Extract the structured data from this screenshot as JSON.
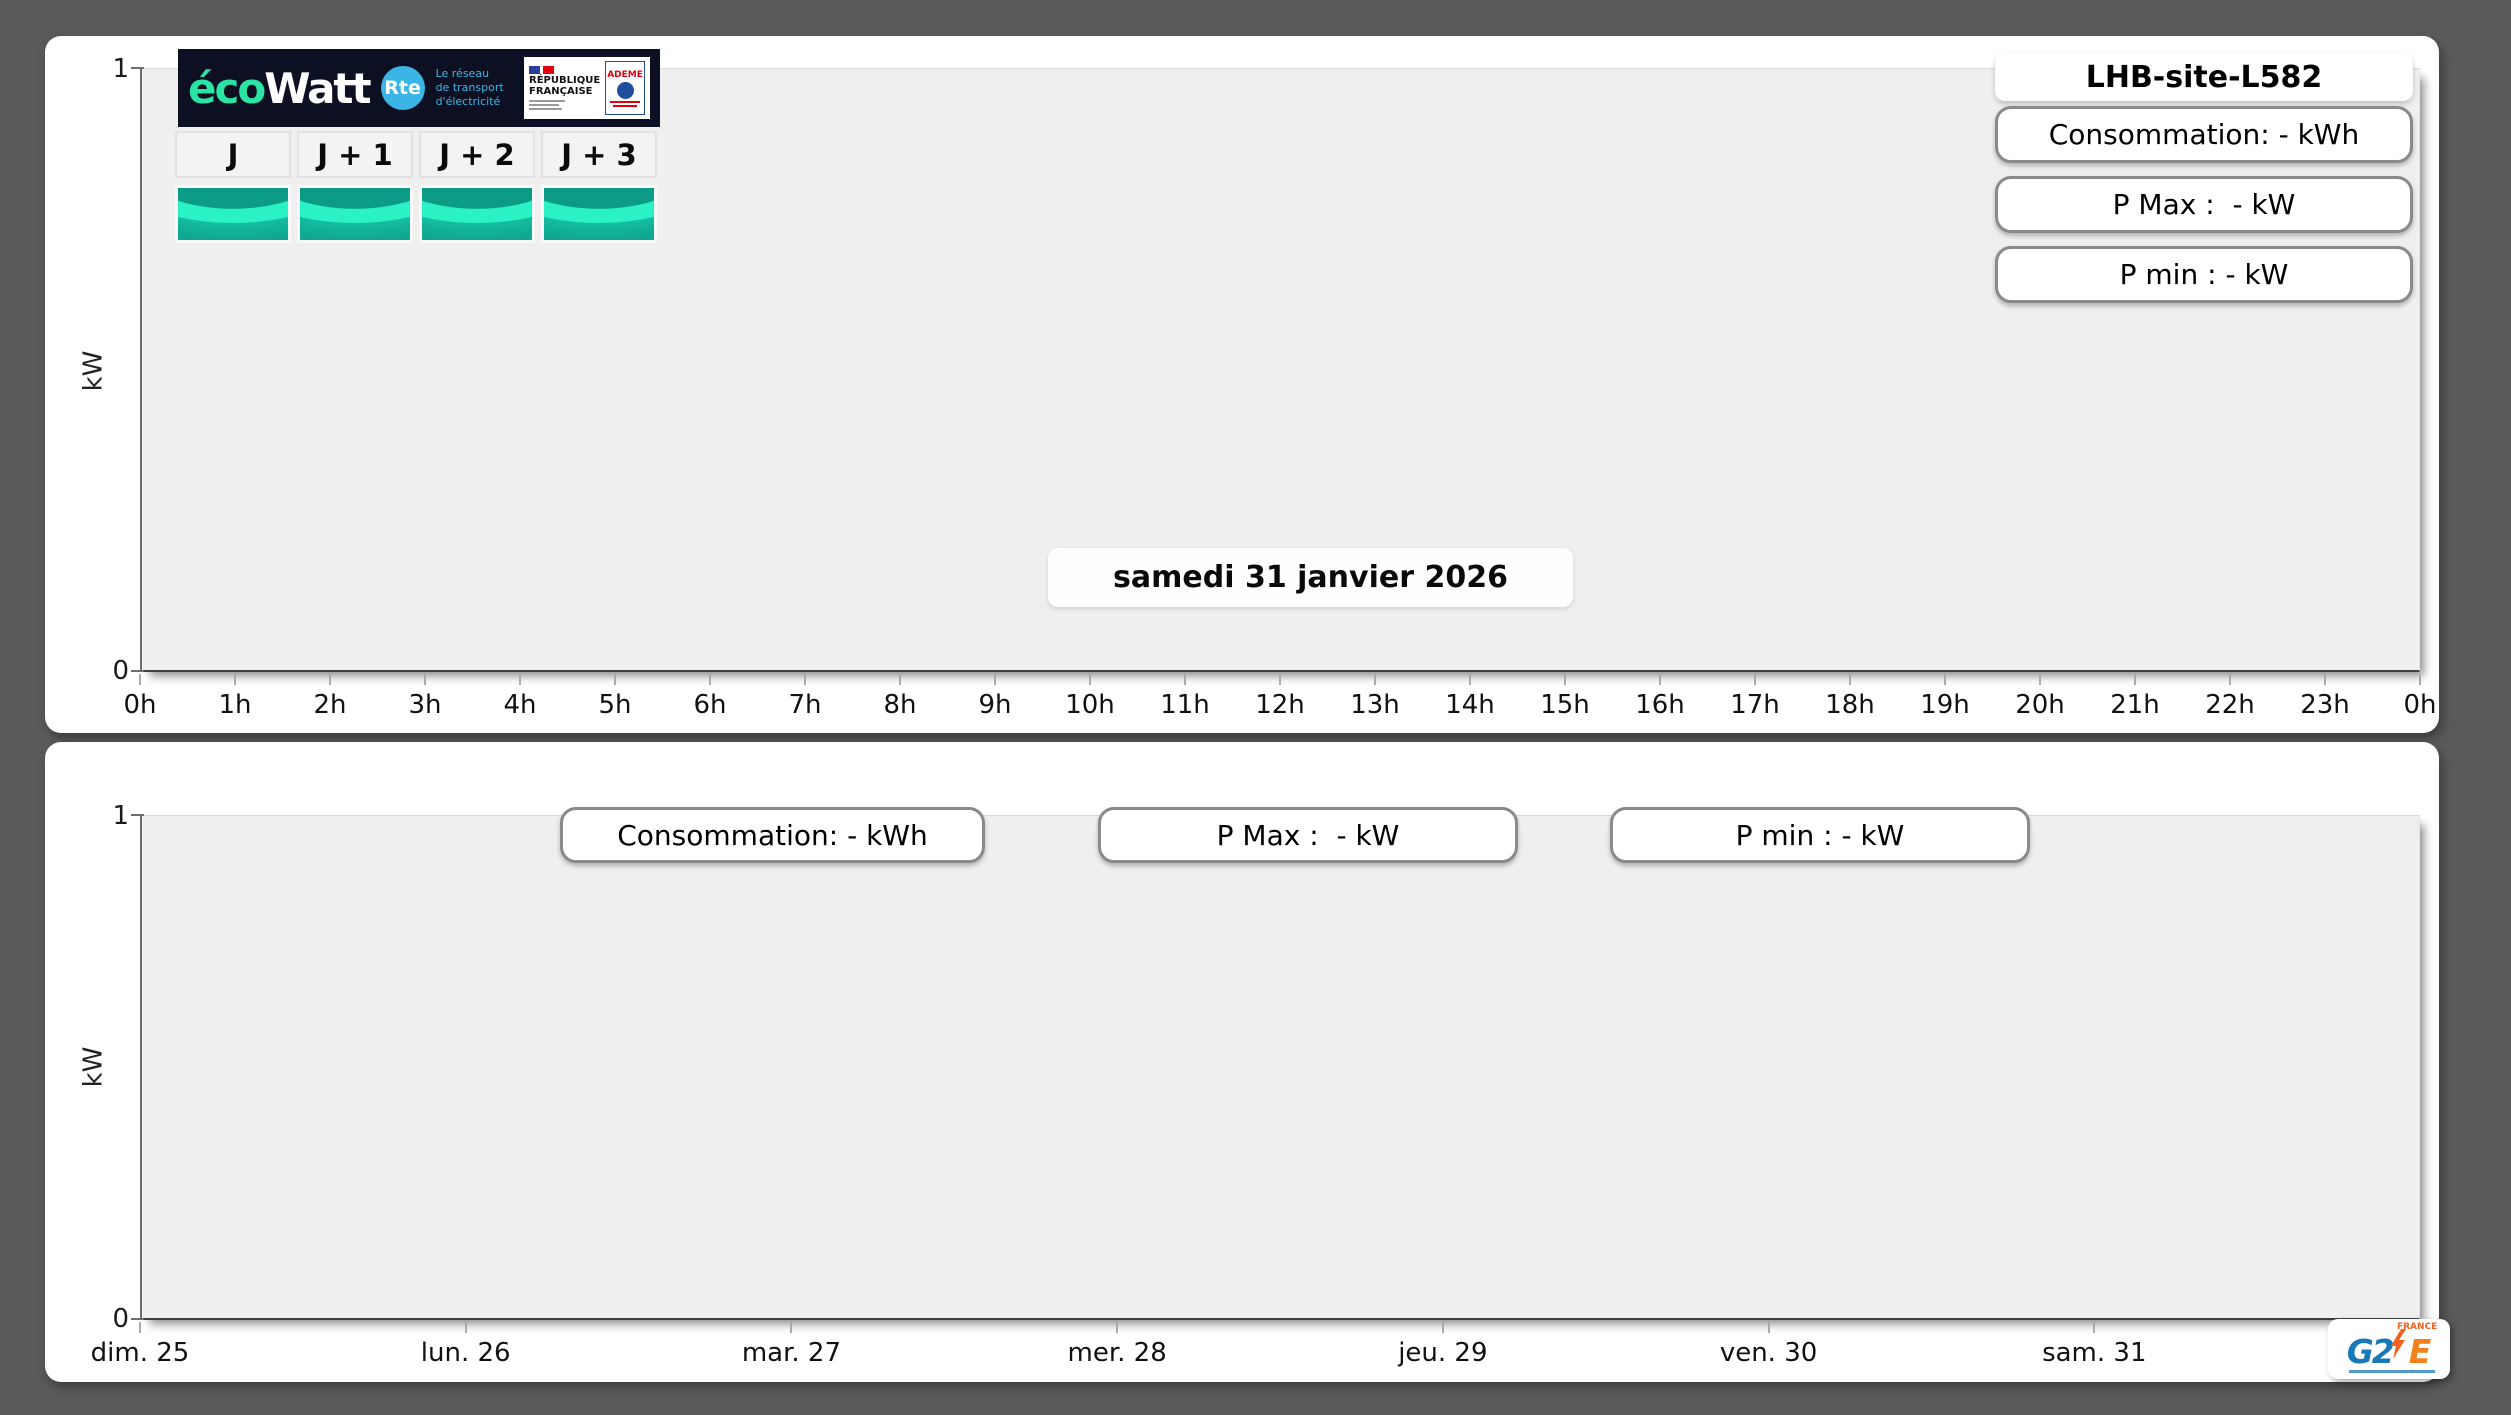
{
  "window": {
    "background": "#5a5a5a"
  },
  "top_panel": {
    "ecowatt_logo": {
      "eco": "éco",
      "watt": "Watt",
      "rte_badge": "Rte",
      "rte_lines": [
        "Le réseau",
        "de transport",
        "d'électricité"
      ],
      "republique_lines": [
        "RÉPUBLIQUE",
        "FRANÇAISE"
      ],
      "ademe_label": "ADEME"
    },
    "day_tabs": [
      {
        "label": "J"
      },
      {
        "label": "J + 1"
      },
      {
        "label": "J + 2"
      },
      {
        "label": "J + 3"
      }
    ],
    "site_title": "LHB-site-L582",
    "stat_boxes": [
      {
        "label": "Consommation: - kWh"
      },
      {
        "label": "P Max :  - kW"
      },
      {
        "label": "P min : - kW"
      }
    ],
    "date_overlay": "samedi 31 janvier 2026",
    "y_axis": {
      "max_label": "1",
      "min_label": "0",
      "unit_label": "kW"
    },
    "x_tick_labels": [
      "0h",
      "1h",
      "2h",
      "3h",
      "4h",
      "5h",
      "6h",
      "7h",
      "8h",
      "9h",
      "10h",
      "11h",
      "12h",
      "13h",
      "14h",
      "15h",
      "16h",
      "17h",
      "18h",
      "19h",
      "20h",
      "21h",
      "22h",
      "23h",
      "0h"
    ]
  },
  "bottom_panel": {
    "stat_boxes": [
      {
        "label": "Consommation: - kWh"
      },
      {
        "label": "P Max :  - kW"
      },
      {
        "label": "P min : - kW"
      }
    ],
    "y_axis": {
      "max_label": "1",
      "min_label": "0",
      "unit_label": "kW"
    },
    "x_tick_labels": [
      "dim. 25",
      "lun. 26",
      "mar. 27",
      "mer. 28",
      "jeu. 29",
      "ven. 30",
      "sam. 31"
    ],
    "g2e_logo": {
      "g2": "G2",
      "e": "E",
      "france": "FRANCE"
    }
  },
  "colors": {
    "ecowatt_green": "#2be3a3",
    "rte_blue": "#3ab5e6",
    "thumb_teal": "#0fa78f",
    "thumb_band": "#2bf2c4",
    "thumb_dome": "#0b9b87",
    "plot_background": "#efefef",
    "g2e_blue": "#1878b8",
    "g2e_orange": "#f2801d"
  },
  "chart_data": [
    {
      "type": "line",
      "panel": "top",
      "title": "samedi 31 janvier 2026",
      "xlabel": "",
      "ylabel": "kW",
      "ylim": [
        0,
        1
      ],
      "y_ticks": [
        0,
        1
      ],
      "x_ticks": [
        "0h",
        "1h",
        "2h",
        "3h",
        "4h",
        "5h",
        "6h",
        "7h",
        "8h",
        "9h",
        "10h",
        "11h",
        "12h",
        "13h",
        "14h",
        "15h",
        "16h",
        "17h",
        "18h",
        "19h",
        "20h",
        "21h",
        "22h",
        "23h",
        "0h"
      ],
      "series": [],
      "grid": false,
      "annotations": [
        "LHB-site-L582",
        "Consommation: - kWh",
        "P Max :  - kW",
        "P min : - kW"
      ]
    },
    {
      "type": "line",
      "panel": "bottom",
      "title": "",
      "xlabel": "",
      "ylabel": "kW",
      "ylim": [
        0,
        1
      ],
      "y_ticks": [
        0,
        1
      ],
      "x_ticks": [
        "dim. 25",
        "lun. 26",
        "mar. 27",
        "mer. 28",
        "jeu. 29",
        "ven. 30",
        "sam. 31"
      ],
      "series": [],
      "grid": false,
      "annotations": [
        "Consommation: - kWh",
        "P Max :  - kW",
        "P min : - kW"
      ]
    }
  ]
}
